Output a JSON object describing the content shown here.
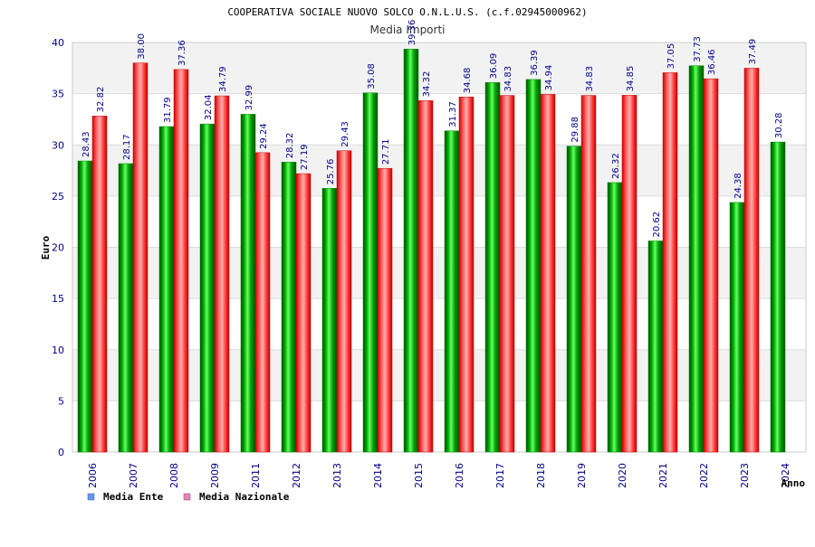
{
  "chart_data": {
    "type": "bar",
    "title": "COOPERATIVA SOCIALE NUOVO SOLCO O.N.L.U.S. (c.f.02945000962)",
    "subtitle": "Media Importi",
    "xlabel": "Anno",
    "ylabel": "Euro",
    "ylim": [
      0,
      40
    ],
    "yticks": [
      "0",
      "5",
      "10",
      "15",
      "20",
      "25",
      "30",
      "35",
      "40"
    ],
    "categories": [
      "2006",
      "2007",
      "2008",
      "2009",
      "2011",
      "2012",
      "2013",
      "2014",
      "2015",
      "2016",
      "2017",
      "2018",
      "2019",
      "2020",
      "2021",
      "2022",
      "2023",
      "2024"
    ],
    "series": [
      {
        "name": "Media Ente",
        "color": "#00a000",
        "values": [
          28.43,
          28.17,
          31.79,
          32.04,
          32.99,
          28.32,
          25.76,
          35.08,
          39.36,
          31.37,
          36.09,
          36.39,
          29.88,
          26.32,
          20.62,
          37.73,
          24.38,
          30.28
        ],
        "labels": [
          "28.43",
          "28.17",
          "31.79",
          "32.04",
          "32.99",
          "28.32",
          "25.76",
          "35.08",
          "39.36",
          "31.37",
          "36.09",
          "36.39",
          "29.88",
          "26.32",
          "20.62",
          "37.73",
          "24.38",
          "30.28"
        ]
      },
      {
        "name": "Media Nazionale",
        "color": "#e00000",
        "values": [
          32.82,
          38.0,
          37.36,
          34.79,
          29.24,
          27.19,
          29.43,
          27.71,
          34.32,
          34.68,
          34.83,
          34.94,
          34.83,
          34.85,
          37.05,
          36.46,
          37.49,
          null
        ],
        "labels": [
          "32.82",
          "38.00",
          "37.36",
          "34.79",
          "29.24",
          "27.19",
          "29.43",
          "27.71",
          "34.32",
          "34.68",
          "34.83",
          "34.94",
          "34.83",
          "34.85",
          "37.05",
          "36.46",
          "37.49",
          null
        ]
      }
    ],
    "legend": {
      "position": "bottom-left",
      "items": [
        {
          "label": "Media Ente",
          "color": "#6699ee"
        },
        {
          "label": "Media Nazionale",
          "color": "#dd88bb"
        }
      ]
    },
    "grid": true
  }
}
